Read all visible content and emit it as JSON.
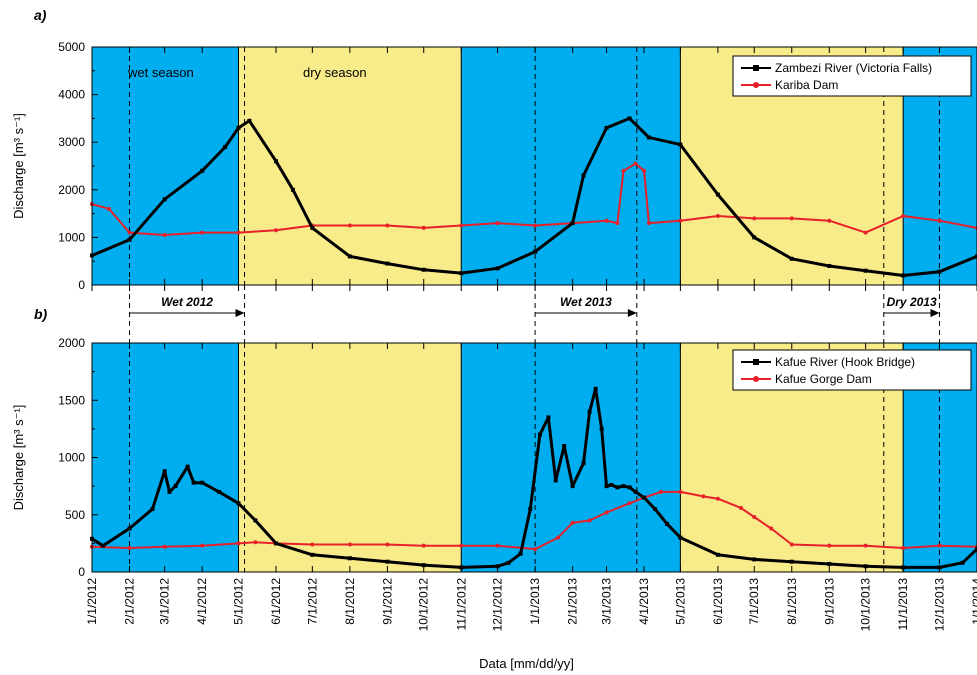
{
  "chart_data": [
    {
      "panel_label": "a)",
      "type": "line",
      "ylabel": "Discharge [m³ s⁻¹]",
      "ylim": [
        0,
        5000
      ],
      "yticks": [
        0,
        1000,
        2000,
        3000,
        4000,
        5000
      ],
      "annotations": [
        "wet season",
        "dry season"
      ],
      "legend_position": "top-right",
      "series": [
        {
          "name": "Zambezi River (Victoria Falls)",
          "color": "#000000",
          "marker": "square",
          "x": [
            "2012-01-01",
            "2012-02-01",
            "2012-03-01",
            "2012-04-01",
            "2012-04-20",
            "2012-05-01",
            "2012-05-10",
            "2012-06-01",
            "2012-06-15",
            "2012-07-01",
            "2012-08-01",
            "2012-09-01",
            "2012-10-01",
            "2012-11-01",
            "2012-12-01",
            "2013-01-01",
            "2013-02-01",
            "2013-02-10",
            "2013-03-01",
            "2013-03-20",
            "2013-04-05",
            "2013-05-01",
            "2013-06-01",
            "2013-07-01",
            "2013-08-01",
            "2013-09-01",
            "2013-10-01",
            "2013-11-01",
            "2013-12-01",
            "2014-01-01"
          ],
          "y": [
            620,
            950,
            1800,
            2400,
            2900,
            3300,
            3450,
            2600,
            2000,
            1200,
            600,
            450,
            320,
            250,
            350,
            700,
            1300,
            2300,
            3300,
            3500,
            3100,
            2950,
            1900,
            1000,
            550,
            400,
            300,
            200,
            280,
            600
          ]
        },
        {
          "name": "Kariba Dam",
          "color": "#e8202a",
          "marker": "circle",
          "x": [
            "2012-01-01",
            "2012-01-15",
            "2012-02-01",
            "2012-03-01",
            "2012-04-01",
            "2012-05-01",
            "2012-06-01",
            "2012-07-01",
            "2012-08-01",
            "2012-09-01",
            "2012-10-01",
            "2012-11-01",
            "2012-12-01",
            "2013-01-01",
            "2013-02-01",
            "2013-03-01",
            "2013-03-10",
            "2013-03-15",
            "2013-03-25",
            "2013-04-01",
            "2013-04-05",
            "2013-05-01",
            "2013-06-01",
            "2013-07-01",
            "2013-08-01",
            "2013-09-01",
            "2013-10-01",
            "2013-11-01",
            "2013-12-01",
            "2014-01-01"
          ],
          "y": [
            1700,
            1600,
            1100,
            1050,
            1100,
            1100,
            1150,
            1250,
            1250,
            1250,
            1200,
            1250,
            1300,
            1250,
            1300,
            1350,
            1300,
            2400,
            2550,
            2400,
            1300,
            1350,
            1450,
            1400,
            1400,
            1350,
            1100,
            1450,
            1350,
            1200
          ]
        }
      ]
    },
    {
      "panel_label": "b)",
      "type": "line",
      "xlabel": "Data [mm/dd/yy]",
      "ylabel": "Discharge [m³ s⁻¹]",
      "ylim": [
        0,
        2000
      ],
      "yticks": [
        0,
        500,
        1000,
        1500,
        2000
      ],
      "legend_position": "top-right",
      "series": [
        {
          "name": "Kafue River (Hook Bridge)",
          "color": "#000000",
          "marker": "square",
          "x": [
            "2012-01-01",
            "2012-01-10",
            "2012-02-01",
            "2012-02-20",
            "2012-03-01",
            "2012-03-05",
            "2012-03-10",
            "2012-03-20",
            "2012-03-25",
            "2012-04-01",
            "2012-04-15",
            "2012-05-01",
            "2012-05-15",
            "2012-06-01",
            "2012-07-01",
            "2012-08-01",
            "2012-09-01",
            "2012-10-01",
            "2012-11-01",
            "2012-12-01",
            "2012-12-10",
            "2012-12-20",
            "2012-12-28",
            "2013-01-05",
            "2013-01-12",
            "2013-01-18",
            "2013-01-25",
            "2013-02-01",
            "2013-02-10",
            "2013-02-15",
            "2013-02-20",
            "2013-02-25",
            "2013-03-01",
            "2013-03-05",
            "2013-03-10",
            "2013-03-15",
            "2013-03-20",
            "2013-03-25",
            "2013-04-01",
            "2013-04-10",
            "2013-04-20",
            "2013-05-01",
            "2013-06-01",
            "2013-07-01",
            "2013-08-01",
            "2013-09-01",
            "2013-10-01",
            "2013-11-01",
            "2013-12-01",
            "2013-12-20",
            "2014-01-01"
          ],
          "y": [
            290,
            230,
            380,
            550,
            880,
            700,
            750,
            920,
            780,
            780,
            700,
            600,
            450,
            250,
            150,
            120,
            90,
            60,
            40,
            50,
            80,
            160,
            550,
            1200,
            1350,
            800,
            1100,
            750,
            950,
            1400,
            1600,
            1250,
            750,
            760,
            740,
            750,
            740,
            700,
            650,
            550,
            420,
            300,
            150,
            110,
            90,
            70,
            50,
            40,
            40,
            80,
            200
          ]
        },
        {
          "name": "Kafue Gorge Dam",
          "color": "#e8202a",
          "marker": "circle",
          "x": [
            "2012-01-01",
            "2012-02-01",
            "2012-03-01",
            "2012-04-01",
            "2012-05-01",
            "2012-05-15",
            "2012-06-01",
            "2012-07-01",
            "2012-08-01",
            "2012-09-01",
            "2012-10-01",
            "2012-11-01",
            "2012-12-01",
            "2013-01-01",
            "2013-01-20",
            "2013-02-01",
            "2013-02-15",
            "2013-03-01",
            "2013-03-20",
            "2013-04-01",
            "2013-04-15",
            "2013-05-01",
            "2013-05-20",
            "2013-06-01",
            "2013-06-20",
            "2013-07-01",
            "2013-07-15",
            "2013-08-01",
            "2013-09-01",
            "2013-10-01",
            "2013-11-01",
            "2013-12-01",
            "2014-01-01"
          ],
          "y": [
            220,
            210,
            220,
            230,
            250,
            260,
            250,
            240,
            240,
            240,
            230,
            230,
            230,
            200,
            300,
            430,
            450,
            520,
            600,
            650,
            700,
            700,
            660,
            640,
            560,
            480,
            380,
            240,
            230,
            230,
            210,
            230,
            220
          ]
        }
      ]
    }
  ],
  "x_tick_labels": [
    "1/1/2012",
    "2/1/2012",
    "3/1/2012",
    "4/1/2012",
    "5/1/2012",
    "6/1/2012",
    "7/1/2012",
    "8/1/2012",
    "9/1/2012",
    "10/1/2012",
    "11/1/2012",
    "12/1/2012",
    "1/1/2013",
    "2/1/2013",
    "3/1/2013",
    "4/1/2013",
    "5/1/2013",
    "6/1/2013",
    "7/1/2013",
    "8/1/2013",
    "9/1/2013",
    "10/1/2013",
    "11/1/2013",
    "12/1/2013",
    "1/1/2014"
  ],
  "x_range": [
    "2012-01-01",
    "2014-01-01"
  ],
  "seasons": [
    {
      "start": "2012-01-01",
      "end": "2012-05-01",
      "type": "wet",
      "color": "#00aeef"
    },
    {
      "start": "2012-05-01",
      "end": "2012-11-01",
      "type": "dry",
      "color": "#f7eb8a"
    },
    {
      "start": "2012-11-01",
      "end": "2013-05-01",
      "type": "wet",
      "color": "#00aeef"
    },
    {
      "start": "2013-05-01",
      "end": "2013-11-01",
      "type": "dry",
      "color": "#f7eb8a"
    },
    {
      "start": "2013-11-01",
      "end": "2014-01-01",
      "type": "wet",
      "color": "#00aeef"
    }
  ],
  "periods": [
    {
      "label": "Wet 2012",
      "start": "2012-02-01",
      "end": "2012-05-06"
    },
    {
      "label": "Wet 2013",
      "start": "2013-01-01",
      "end": "2013-03-26"
    },
    {
      "label": "Dry 2013",
      "start": "2013-10-16",
      "end": "2013-12-01"
    }
  ]
}
